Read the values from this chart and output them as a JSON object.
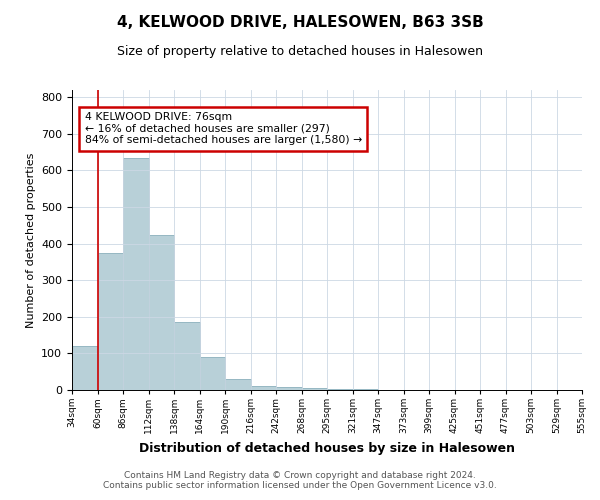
{
  "title": "4, KELWOOD DRIVE, HALESOWEN, B63 3SB",
  "subtitle": "Size of property relative to detached houses in Halesowen",
  "xlabel": "Distribution of detached houses by size in Halesowen",
  "ylabel": "Number of detached properties",
  "bar_values": [
    120,
    375,
    635,
    425,
    185,
    90,
    30,
    12,
    8,
    5,
    3,
    2,
    1,
    0,
    0,
    0,
    0,
    0,
    0,
    0
  ],
  "bar_labels": [
    "34sqm",
    "60sqm",
    "86sqm",
    "112sqm",
    "138sqm",
    "164sqm",
    "190sqm",
    "216sqm",
    "242sqm",
    "268sqm",
    "295sqm",
    "321sqm",
    "347sqm",
    "373sqm",
    "399sqm",
    "425sqm",
    "451sqm",
    "477sqm",
    "503sqm",
    "529sqm",
    "555sqm"
  ],
  "bar_color": "#b8d0d8",
  "bar_edge_color": "#8ab0bc",
  "vline_x_index": 1,
  "vline_color": "#cc0000",
  "annotation_text": "4 KELWOOD DRIVE: 76sqm\n← 16% of detached houses are smaller (297)\n84% of semi-detached houses are larger (1,580) →",
  "annotation_box_color": "#ffffff",
  "annotation_box_edge": "#cc0000",
  "ylim": [
    0,
    820
  ],
  "yticks": [
    0,
    100,
    200,
    300,
    400,
    500,
    600,
    700,
    800
  ],
  "footnote": "Contains HM Land Registry data © Crown copyright and database right 2024.\nContains public sector information licensed under the Open Government Licence v3.0.",
  "background_color": "#ffffff",
  "grid_color": "#ccd8e4"
}
